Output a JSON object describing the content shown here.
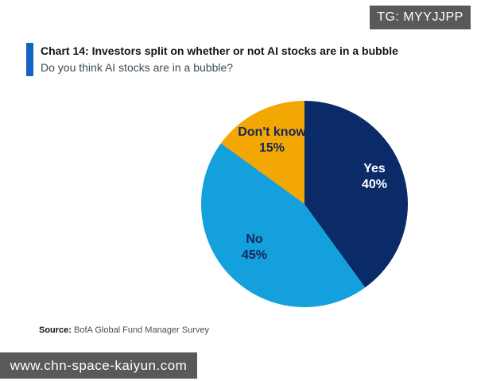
{
  "watermark_top": {
    "text": "TG: MYYJJPP",
    "bg_color": "#595959"
  },
  "header": {
    "title": "Chart 14: Investors split on whether or not AI stocks are in a bubble",
    "subtitle": "Do you think AI stocks are in a bubble?",
    "accent_color": "#1464c4"
  },
  "chart_data": {
    "type": "pie",
    "title": "Chart 14: Investors split on whether or not AI stocks are in a bubble",
    "question": "Do you think AI stocks are in a bubble?",
    "start_angle_deg": 0,
    "direction": "clockwise",
    "legend": "none",
    "slices": [
      {
        "label": "Yes",
        "value": 40,
        "display": "40%",
        "color": "#0b2a68",
        "label_color": "#ffffff"
      },
      {
        "label": "No",
        "value": 45,
        "display": "45%",
        "color": "#14a0dc",
        "label_color": "#15265a"
      },
      {
        "label": "Don't know",
        "value": 15,
        "display": "15%",
        "color": "#f2a702",
        "label_color": "#15265a"
      }
    ]
  },
  "source": {
    "prefix": "Source:",
    "text": "BofA Global Fund Manager Survey"
  },
  "watermark_bottom": {
    "text": "www.chn-space-kaiyun.com",
    "bg_color": "#595959"
  }
}
